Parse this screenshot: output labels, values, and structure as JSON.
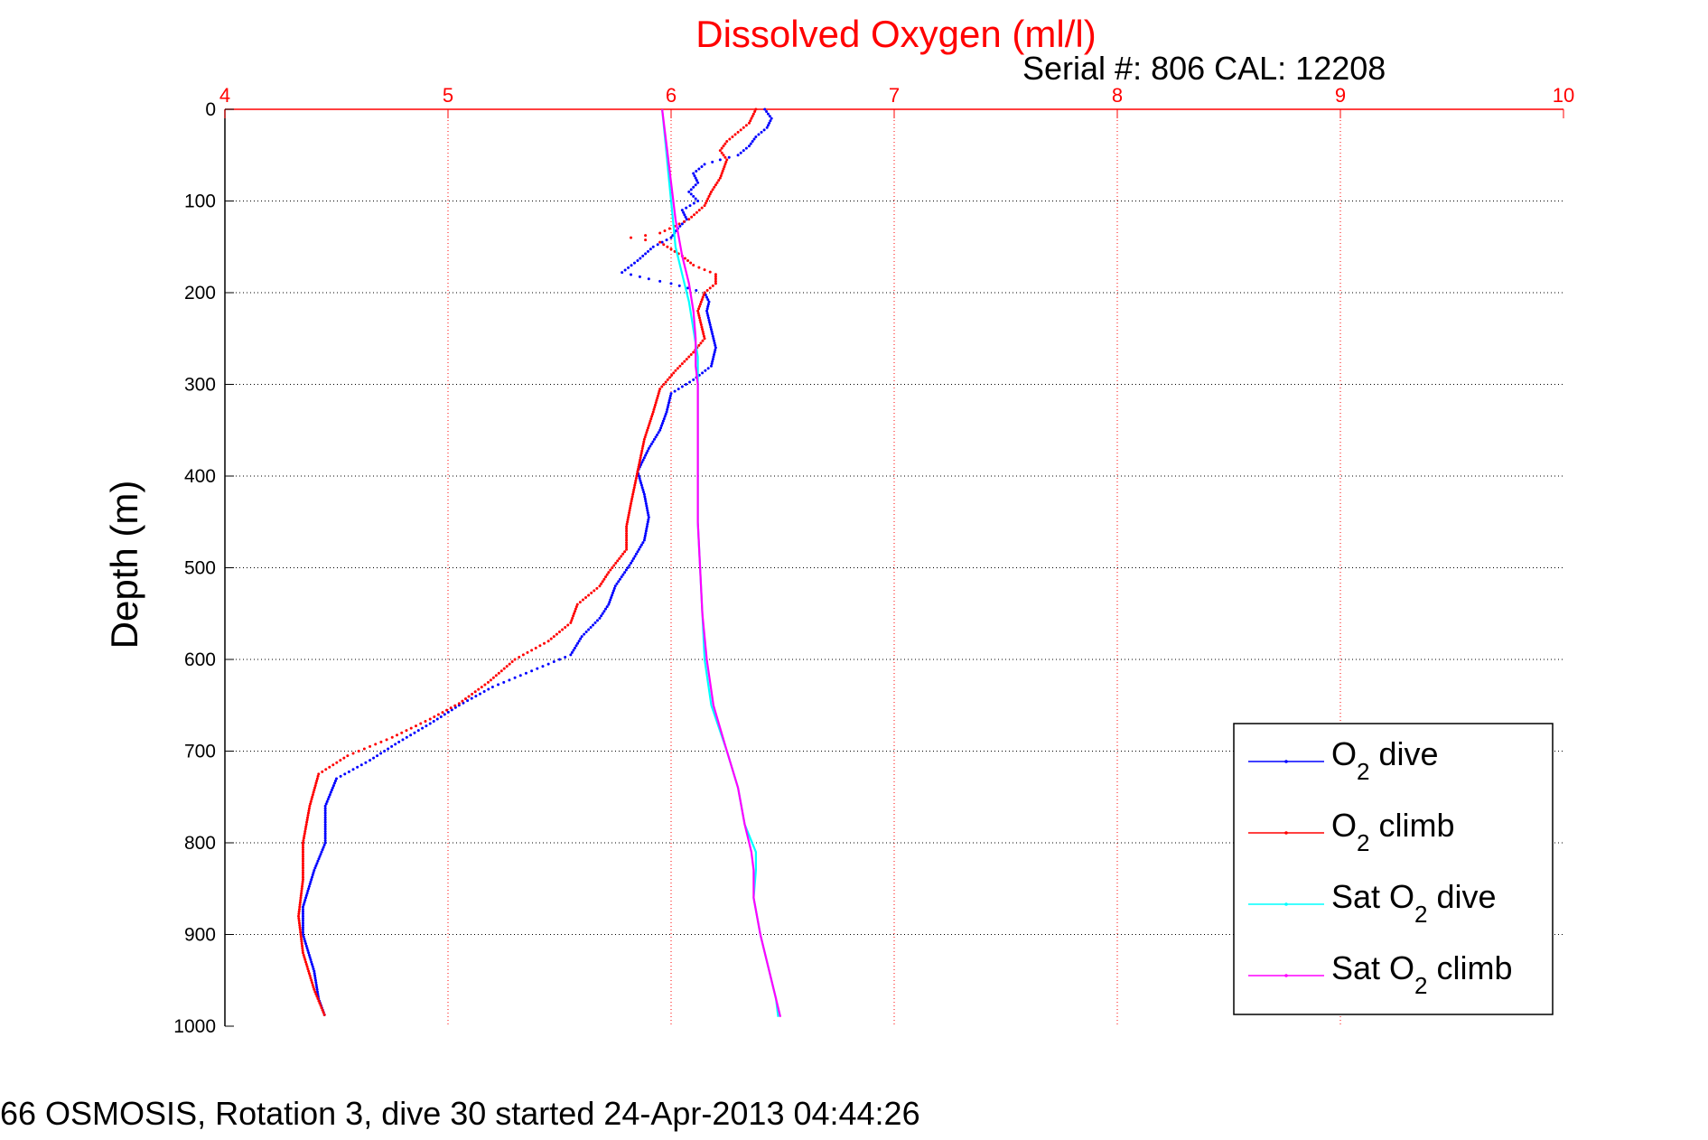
{
  "chart_data": {
    "type": "scatter",
    "title": "Dissolved Oxygen (ml/l)",
    "subtitle": "Serial #: 806  CAL: 12208",
    "ylabel": "Depth (m)",
    "xlabel": "",
    "footer": "66 OSMOSIS, Rotation 3, dive 30 started 24-Apr-2013 04:44:26",
    "xlim": [
      4,
      10
    ],
    "ylim": [
      0,
      1000
    ],
    "y_reversed": true,
    "x_axis_position": "top",
    "x_ticks": [
      "4",
      "5",
      "6",
      "7",
      "8",
      "9",
      "10"
    ],
    "y_ticks": [
      "0",
      "100",
      "200",
      "300",
      "400",
      "500",
      "600",
      "700",
      "800",
      "900",
      "1000"
    ],
    "grid": true,
    "legend_position": "bottom-right",
    "colors": {
      "title": "#ff0000",
      "x_ticks": "#ff0000",
      "x_grid": "#ff0000",
      "y_grid": "#000000",
      "axes": "#000000"
    },
    "series": [
      {
        "name": "O2 dive",
        "legend_main": "O",
        "legend_sub": "2",
        "legend_rest": " dive",
        "color": "#0000ff",
        "style": "dotted",
        "points": [
          [
            6.42,
            0
          ],
          [
            6.45,
            10
          ],
          [
            6.43,
            20
          ],
          [
            6.38,
            30
          ],
          [
            6.35,
            40
          ],
          [
            6.3,
            50
          ],
          [
            6.22,
            55
          ],
          [
            6.15,
            60
          ],
          [
            6.1,
            70
          ],
          [
            6.12,
            80
          ],
          [
            6.08,
            90
          ],
          [
            6.12,
            100
          ],
          [
            6.05,
            110
          ],
          [
            6.07,
            120
          ],
          [
            6.03,
            130
          ],
          [
            6.0,
            140
          ],
          [
            5.92,
            150
          ],
          [
            5.85,
            165
          ],
          [
            5.78,
            178
          ],
          [
            5.9,
            185
          ],
          [
            6.0,
            190
          ],
          [
            6.15,
            200
          ],
          [
            6.17,
            210
          ],
          [
            6.16,
            220
          ],
          [
            6.18,
            240
          ],
          [
            6.2,
            260
          ],
          [
            6.18,
            280
          ],
          [
            6.1,
            295
          ],
          [
            6.0,
            310
          ],
          [
            5.98,
            330
          ],
          [
            5.95,
            350
          ],
          [
            5.9,
            370
          ],
          [
            5.85,
            395
          ],
          [
            5.88,
            420
          ],
          [
            5.9,
            445
          ],
          [
            5.88,
            470
          ],
          [
            5.82,
            495
          ],
          [
            5.75,
            520
          ],
          [
            5.72,
            540
          ],
          [
            5.68,
            555
          ],
          [
            5.6,
            575
          ],
          [
            5.55,
            595
          ],
          [
            5.4,
            610
          ],
          [
            5.2,
            630
          ],
          [
            5.05,
            650
          ],
          [
            4.92,
            670
          ],
          [
            4.78,
            690
          ],
          [
            4.65,
            710
          ],
          [
            4.5,
            730
          ],
          [
            4.45,
            760
          ],
          [
            4.45,
            800
          ],
          [
            4.4,
            830
          ],
          [
            4.35,
            870
          ],
          [
            4.35,
            900
          ],
          [
            4.4,
            940
          ],
          [
            4.42,
            970
          ],
          [
            4.45,
            990
          ]
        ]
      },
      {
        "name": "O2 climb",
        "legend_main": "O",
        "legend_sub": "2",
        "legend_rest": " climb",
        "color": "#ff0000",
        "style": "dotted",
        "points": [
          [
            6.38,
            0
          ],
          [
            6.35,
            15
          ],
          [
            6.3,
            25
          ],
          [
            6.25,
            35
          ],
          [
            6.22,
            45
          ],
          [
            6.25,
            55
          ],
          [
            6.22,
            75
          ],
          [
            6.18,
            90
          ],
          [
            6.15,
            105
          ],
          [
            6.08,
            120
          ],
          [
            5.95,
            135
          ],
          [
            5.82,
            140
          ],
          [
            5.95,
            145
          ],
          [
            6.05,
            160
          ],
          [
            6.1,
            170
          ],
          [
            6.2,
            180
          ],
          [
            6.2,
            190
          ],
          [
            6.15,
            200
          ],
          [
            6.12,
            220
          ],
          [
            6.15,
            250
          ],
          [
            6.1,
            265
          ],
          [
            6.02,
            285
          ],
          [
            5.95,
            305
          ],
          [
            5.92,
            330
          ],
          [
            5.88,
            360
          ],
          [
            5.85,
            395
          ],
          [
            5.82,
            430
          ],
          [
            5.8,
            455
          ],
          [
            5.8,
            480
          ],
          [
            5.72,
            505
          ],
          [
            5.68,
            520
          ],
          [
            5.58,
            540
          ],
          [
            5.55,
            560
          ],
          [
            5.45,
            580
          ],
          [
            5.3,
            600
          ],
          [
            5.18,
            625
          ],
          [
            5.05,
            648
          ],
          [
            4.92,
            665
          ],
          [
            4.75,
            685
          ],
          [
            4.55,
            705
          ],
          [
            4.42,
            725
          ],
          [
            4.38,
            760
          ],
          [
            4.35,
            800
          ],
          [
            4.35,
            840
          ],
          [
            4.33,
            880
          ],
          [
            4.35,
            920
          ],
          [
            4.4,
            960
          ],
          [
            4.45,
            990
          ]
        ]
      },
      {
        "name": "Sat O2 dive",
        "legend_main": "Sat O",
        "legend_sub": "2",
        "legend_rest": " dive",
        "color": "#00ffff",
        "style": "line",
        "points": [
          [
            5.96,
            0
          ],
          [
            5.97,
            25
          ],
          [
            5.98,
            50
          ],
          [
            5.99,
            75
          ],
          [
            6.0,
            100
          ],
          [
            6.01,
            125
          ],
          [
            6.02,
            150
          ],
          [
            6.05,
            180
          ],
          [
            6.08,
            210
          ],
          [
            6.1,
            240
          ],
          [
            6.12,
            270
          ],
          [
            6.12,
            300
          ],
          [
            6.12,
            350
          ],
          [
            6.12,
            400
          ],
          [
            6.12,
            450
          ],
          [
            6.13,
            500
          ],
          [
            6.14,
            550
          ],
          [
            6.15,
            600
          ],
          [
            6.18,
            650
          ],
          [
            6.25,
            700
          ],
          [
            6.3,
            740
          ],
          [
            6.33,
            780
          ],
          [
            6.38,
            810
          ],
          [
            6.38,
            830
          ],
          [
            6.37,
            860
          ],
          [
            6.4,
            900
          ],
          [
            6.44,
            940
          ],
          [
            6.47,
            970
          ],
          [
            6.48,
            990
          ]
        ]
      },
      {
        "name": "Sat O2 climb",
        "legend_main": "Sat O",
        "legend_sub": "2",
        "legend_rest": " climb",
        "color": "#ff00ff",
        "style": "line",
        "points": [
          [
            5.96,
            0
          ],
          [
            5.98,
            40
          ],
          [
            6.0,
            80
          ],
          [
            6.02,
            120
          ],
          [
            6.05,
            160
          ],
          [
            6.08,
            190
          ],
          [
            6.1,
            220
          ],
          [
            6.11,
            250
          ],
          [
            6.11,
            280
          ],
          [
            6.12,
            300
          ],
          [
            6.12,
            350
          ],
          [
            6.12,
            400
          ],
          [
            6.12,
            450
          ],
          [
            6.13,
            500
          ],
          [
            6.14,
            550
          ],
          [
            6.16,
            600
          ],
          [
            6.19,
            650
          ],
          [
            6.25,
            700
          ],
          [
            6.3,
            740
          ],
          [
            6.33,
            780
          ],
          [
            6.36,
            810
          ],
          [
            6.37,
            830
          ],
          [
            6.37,
            860
          ],
          [
            6.4,
            900
          ],
          [
            6.44,
            940
          ],
          [
            6.47,
            970
          ],
          [
            6.49,
            990
          ]
        ]
      }
    ]
  }
}
